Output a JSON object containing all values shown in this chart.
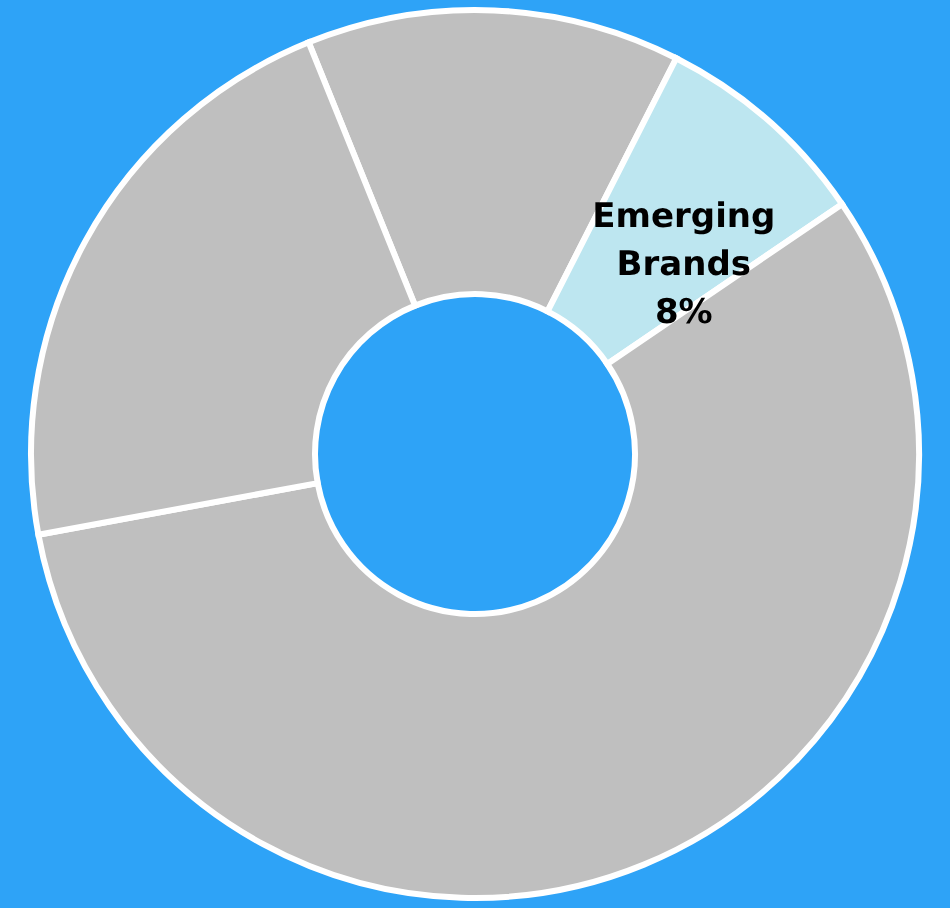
{
  "chart_data": {
    "type": "donut",
    "categories": [
      null,
      "Emerging Brands",
      null,
      null
    ],
    "values": [
      13.6,
      8,
      56.6,
      21.8
    ],
    "value_labels": [
      null,
      "8%",
      null,
      null
    ],
    "colors": [
      "#bfbfbf",
      "#bde6f0",
      "#bfbfbf",
      "#bfbfbf"
    ],
    "legend": false
  }
}
